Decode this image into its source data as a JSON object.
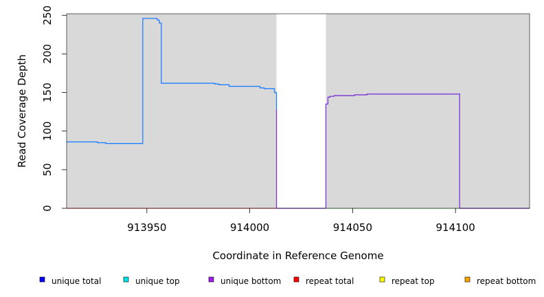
{
  "chart_data": {
    "type": "line",
    "title": "",
    "xlabel": "Coordinate in Reference Genome",
    "ylabel": "Read Coverage Depth",
    "xlim": [
      913911,
      914136
    ],
    "ylim": [
      0,
      252
    ],
    "x_ticks": [
      913950,
      914000,
      914050,
      914100
    ],
    "x_tick_labels": [
      "913950",
      "914000",
      "914050",
      "914100"
    ],
    "y_ticks": [
      0,
      50,
      100,
      150,
      200,
      250
    ],
    "y_tick_labels": [
      "0",
      "50",
      "100",
      "150",
      "200",
      "250"
    ],
    "background": "#d9d9d9",
    "unshaded_regions": [
      [
        914013,
        914037
      ]
    ],
    "grid": false,
    "legend_position": "bottom",
    "legend": [
      {
        "label": "unique total",
        "color": "#0000ff"
      },
      {
        "label": "unique top",
        "color": "#00e5e5"
      },
      {
        "label": "unique bottom",
        "color": "#a020f0"
      },
      {
        "label": "repeat total",
        "color": "#ff0000"
      },
      {
        "label": "repeat top",
        "color": "#ffff00"
      },
      {
        "label": "repeat bottom",
        "color": "#ffa500"
      }
    ],
    "series": [
      {
        "color": "#1e7fff",
        "x": [
          913911,
          913926,
          913926,
          913930,
          913930,
          913948,
          913948,
          913955,
          913955,
          913956,
          913956,
          913957,
          913957,
          913983,
          913983,
          913985,
          913985,
          913990,
          913990,
          914005,
          914005,
          914007,
          914007,
          914012,
          914012,
          914013,
          914013
        ],
        "y": [
          86,
          86,
          85,
          85,
          84,
          84,
          246,
          246,
          244,
          244,
          240,
          240,
          162,
          162,
          161,
          161,
          160,
          160,
          158,
          158,
          156,
          156,
          155,
          155,
          150,
          150,
          128
        ]
      },
      {
        "color": "#7a33d6",
        "x": [
          914013,
          914013,
          914037,
          914037,
          914038,
          914038,
          914039,
          914039,
          914041,
          914041,
          914051,
          914051,
          914057,
          914057,
          914102,
          914102,
          914136
        ],
        "y": [
          128,
          0,
          0,
          135,
          135,
          144,
          144,
          145,
          145,
          146,
          146,
          147,
          147,
          148,
          148,
          0,
          0
        ]
      },
      {
        "color": "#e06060",
        "x": [
          913911,
          914013
        ],
        "y": [
          0,
          0
        ]
      },
      {
        "color": "#90d890",
        "x": [
          914037,
          914102
        ],
        "y": [
          0,
          0
        ]
      }
    ]
  }
}
